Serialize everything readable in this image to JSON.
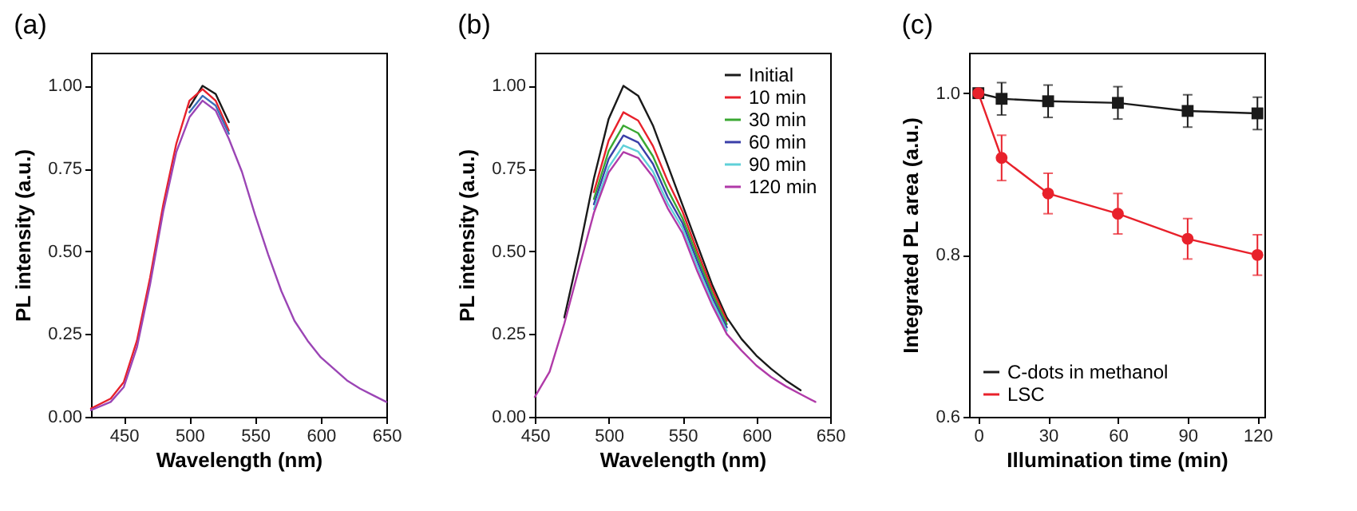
{
  "chart_data": [
    {
      "type": "line",
      "title": "(a)",
      "xlabel": "Wavelength (nm)",
      "ylabel": "PL intensity (a.u.)",
      "xlim": [
        425,
        650
      ],
      "xticks": [
        450,
        500,
        550,
        600,
        650
      ],
      "ylim": [
        0,
        1.1
      ],
      "yticks": [
        {
          "value": 0,
          "label": "0.00"
        },
        {
          "value": 0.25,
          "label": "0.25"
        },
        {
          "value": 0.5,
          "label": "0.50"
        },
        {
          "value": 0.75,
          "label": "0.75"
        },
        {
          "value": 1,
          "label": "1.00"
        }
      ],
      "x": [
        425,
        440,
        450,
        460,
        470,
        480,
        490,
        500,
        510,
        520,
        530,
        540,
        550,
        560,
        570,
        580,
        590,
        600,
        610,
        620,
        630,
        640,
        650
      ],
      "series": [
        {
          "color": "#1a1a1a",
          "values": [
            null,
            null,
            null,
            null,
            null,
            null,
            null,
            0.935,
            1.0,
            0.975,
            0.89,
            null,
            null,
            null,
            null,
            null,
            null,
            null,
            null,
            null,
            null,
            null,
            null
          ]
        },
        {
          "color": "#e8212b",
          "values": [
            0.025,
            0.055,
            0.105,
            0.23,
            0.42,
            0.64,
            0.825,
            0.955,
            0.99,
            0.955,
            0.865,
            null,
            null,
            null,
            null,
            null,
            null,
            null,
            null,
            null,
            null,
            null,
            null
          ]
        },
        {
          "color": "#3b6fb8",
          "values": [
            null,
            null,
            null,
            null,
            null,
            null,
            null,
            0.92,
            0.97,
            0.94,
            0.855,
            null,
            null,
            null,
            null,
            null,
            null,
            null,
            null,
            null,
            null,
            null,
            null
          ]
        },
        {
          "color": "#9b45b5",
          "values": [
            0.02,
            0.045,
            0.09,
            0.21,
            0.4,
            0.62,
            0.8,
            0.905,
            0.955,
            0.925,
            0.84,
            0.74,
            0.61,
            0.49,
            0.38,
            0.29,
            0.23,
            0.18,
            0.145,
            0.11,
            0.085,
            0.065,
            0.045
          ]
        }
      ]
    },
    {
      "type": "line",
      "title": "(b)",
      "xlabel": "Wavelength (nm)",
      "ylabel": "PL intensity (a.u.)",
      "xlim": [
        450,
        650
      ],
      "xticks": [
        450,
        500,
        550,
        600,
        650
      ],
      "ylim": [
        0,
        1.1
      ],
      "yticks": [
        {
          "value": 0,
          "label": "0.00"
        },
        {
          "value": 0.25,
          "label": "0.25"
        },
        {
          "value": 0.5,
          "label": "0.50"
        },
        {
          "value": 0.75,
          "label": "0.75"
        },
        {
          "value": 1,
          "label": "1.00"
        }
      ],
      "legend": "top right",
      "x": [
        450,
        460,
        470,
        480,
        490,
        500,
        510,
        520,
        530,
        540,
        550,
        560,
        570,
        580,
        590,
        600,
        610,
        620,
        630,
        640
      ],
      "series": [
        {
          "name": "Initial",
          "color": "#1a1a1a",
          "values": [
            null,
            null,
            0.3,
            0.5,
            0.72,
            0.9,
            1.0,
            0.97,
            0.88,
            0.76,
            0.64,
            0.52,
            0.4,
            0.3,
            0.235,
            0.185,
            0.145,
            0.11,
            0.08,
            null
          ]
        },
        {
          "name": "10 min",
          "color": "#e8212b",
          "values": [
            null,
            null,
            null,
            null,
            0.679,
            0.835,
            0.92,
            0.895,
            0.818,
            0.712,
            0.62,
            0.5,
            0.387,
            0.29,
            null,
            null,
            null,
            null,
            null,
            null
          ]
        },
        {
          "name": "30 min",
          "color": "#3aa832",
          "values": [
            null,
            null,
            null,
            null,
            0.658,
            0.803,
            0.88,
            0.857,
            0.787,
            0.686,
            0.6,
            0.485,
            0.374,
            0.28,
            null,
            null,
            null,
            null,
            null,
            null
          ]
        },
        {
          "name": "60 min",
          "color": "#3a3fa8",
          "values": [
            null,
            null,
            null,
            null,
            0.642,
            0.779,
            0.85,
            0.829,
            0.764,
            0.664,
            0.585,
            0.47,
            0.362,
            0.27,
            null,
            null,
            null,
            null,
            null,
            null
          ]
        },
        {
          "name": "90 min",
          "color": "#5fd0d8",
          "values": [
            null,
            null,
            null,
            null,
            0.627,
            0.754,
            0.82,
            0.801,
            0.741,
            0.645,
            0.57,
            0.455,
            0.35,
            0.26,
            null,
            null,
            null,
            null,
            null,
            null
          ]
        },
        {
          "name": "120 min",
          "color": "#b03aa8",
          "values": [
            0.06,
            0.136,
            0.282,
            0.45,
            0.616,
            0.738,
            0.8,
            0.782,
            0.725,
            0.63,
            0.555,
            0.44,
            0.338,
            0.25,
            0.2,
            0.155,
            0.12,
            0.092,
            0.068,
            0.045
          ]
        }
      ]
    },
    {
      "type": "line",
      "title": "(c)",
      "xlabel": "Illumination time (min)",
      "ylabel": "Integrated PL area (a.u.)",
      "xlim": [
        -4,
        123
      ],
      "xticks": [
        0,
        30,
        60,
        90,
        120
      ],
      "ylim": [
        0.6,
        1.05
      ],
      "yticks": [
        {
          "value": 0.6,
          "label": "0.6"
        },
        {
          "value": 0.8,
          "label": "0.8"
        },
        {
          "value": 1,
          "label": "1.0"
        }
      ],
      "legend": "bottom left",
      "x": [
        0,
        10,
        30,
        60,
        90,
        120
      ],
      "series": [
        {
          "name": "C-dots in methanol",
          "color": "#1a1a1a",
          "marker": "square",
          "values": [
            1.0,
            0.993,
            0.99,
            0.988,
            0.978,
            0.975
          ],
          "errors": [
            null,
            0.02,
            0.02,
            0.02,
            0.02,
            0.02
          ]
        },
        {
          "name": "LSC",
          "color": "#e8212b",
          "marker": "circle",
          "values": [
            1.0,
            0.92,
            0.876,
            0.851,
            0.82,
            0.8
          ],
          "errors": [
            null,
            0.028,
            0.025,
            0.025,
            0.025,
            0.025
          ]
        }
      ]
    }
  ]
}
